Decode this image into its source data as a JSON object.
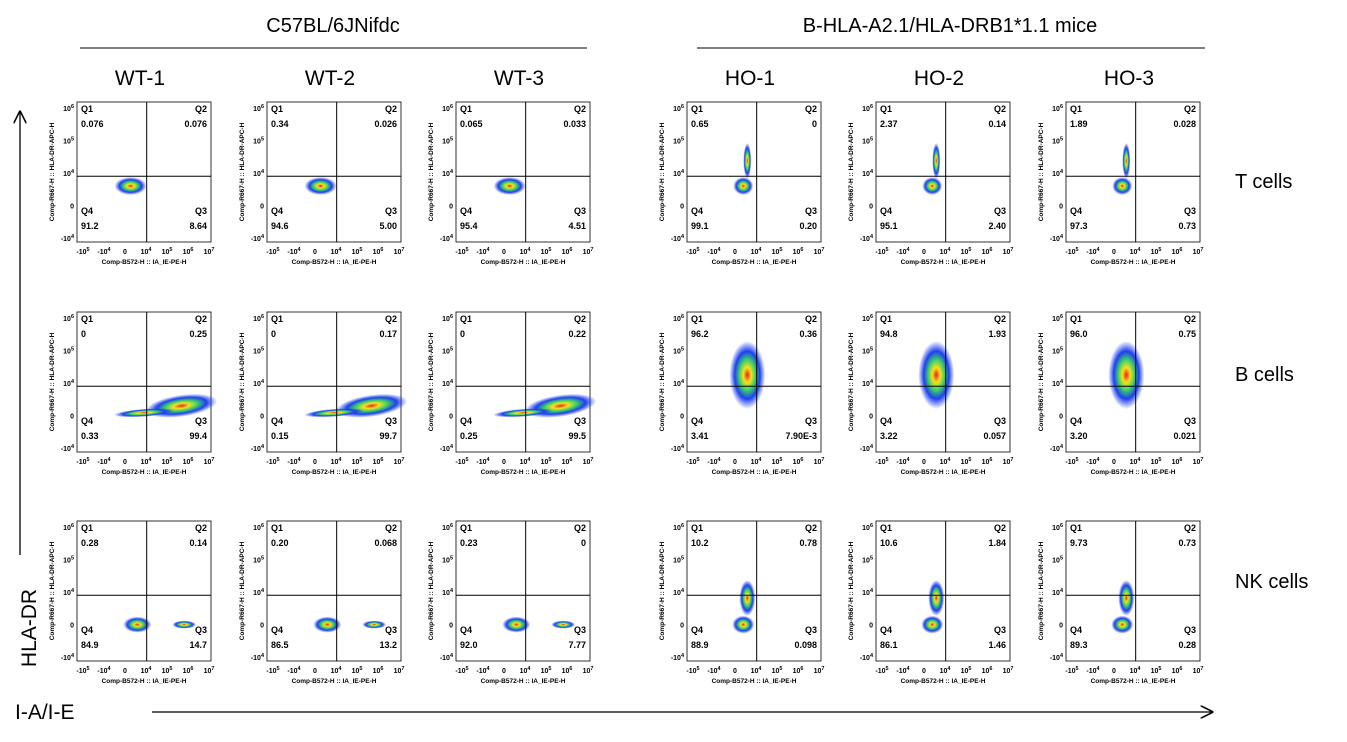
{
  "groups": [
    {
      "title": "C57BL/6JNifdc",
      "samples": [
        "WT-1",
        "WT-2",
        "WT-3"
      ]
    },
    {
      "title": "B-HLA-A2.1/HLA-DRB1*1.1 mice",
      "samples": [
        "HO-1",
        "HO-2",
        "HO-3"
      ]
    }
  ],
  "rows": [
    "T cells",
    "B cells",
    "NK cells"
  ],
  "y_axis_title": "HLA-DR",
  "x_axis_title": "I-A/I-E",
  "plot": {
    "y_label": "Comp-R667-H :: HLA-DR-APC-H",
    "x_label": "Comp-B572-H :: IA_IE-PE-H",
    "quadrants": [
      "Q1",
      "Q2",
      "Q3",
      "Q4"
    ],
    "xticks": [
      {
        "base": "-10",
        "exp": "5"
      },
      {
        "base": "-10",
        "exp": "4"
      },
      {
        "base": "0"
      },
      {
        "base": "10",
        "exp": "4"
      },
      {
        "base": "10",
        "exp": "5"
      },
      {
        "base": "10",
        "exp": "6"
      },
      {
        "base": "10",
        "exp": "7"
      }
    ],
    "yticks": [
      {
        "base": "10",
        "exp": "6"
      },
      {
        "base": "10",
        "exp": "5"
      },
      {
        "base": "10",
        "exp": "4"
      },
      {
        "base": "0"
      },
      {
        "base": "-10",
        "exp": "4"
      }
    ]
  },
  "plots": [
    [
      [
        "0.076",
        "0.076",
        "8.64",
        "91.2"
      ],
      [
        "0.34",
        "0.026",
        "5.00",
        "94.6"
      ],
      [
        "0.065",
        "0.033",
        "4.51",
        "95.4"
      ],
      [
        "0.65",
        "0",
        "0.20",
        "99.1"
      ],
      [
        "2.37",
        "0.14",
        "2.40",
        "95.1"
      ],
      [
        "1.89",
        "0.028",
        "0.73",
        "97.3"
      ]
    ],
    [
      [
        "0",
        "0.25",
        "99.4",
        "0.33"
      ],
      [
        "0",
        "0.17",
        "99.7",
        "0.15"
      ],
      [
        "0",
        "0.22",
        "99.5",
        "0.25"
      ],
      [
        "96.2",
        "0.36",
        "7.90E-3",
        "3.41"
      ],
      [
        "94.8",
        "1.93",
        "0.057",
        "3.22"
      ],
      [
        "96.0",
        "0.75",
        "0.021",
        "3.20"
      ]
    ],
    [
      [
        "0.28",
        "0.14",
        "14.7",
        "84.9"
      ],
      [
        "0.20",
        "0.068",
        "13.2",
        "86.5"
      ],
      [
        "0.23",
        "0",
        "7.77",
        "92.0"
      ],
      [
        "10.2",
        "0.78",
        "0.098",
        "88.9"
      ],
      [
        "10.6",
        "1.84",
        "1.46",
        "86.1"
      ],
      [
        "9.73",
        "0.73",
        "0.28",
        "89.3"
      ]
    ]
  ]
}
